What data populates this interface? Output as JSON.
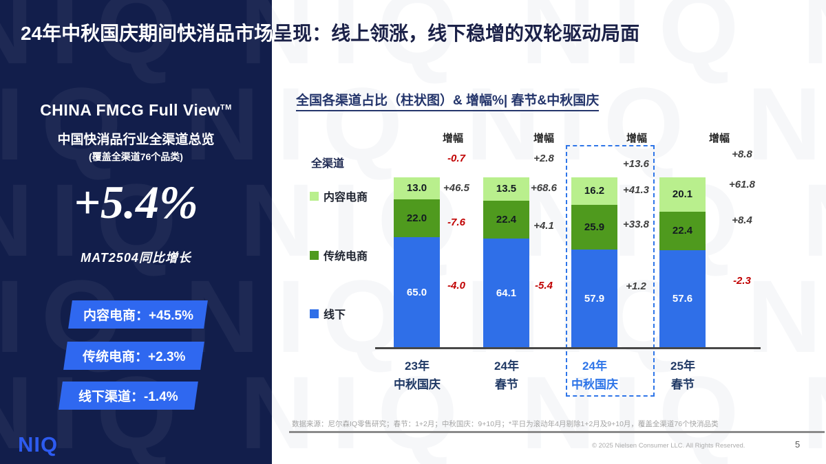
{
  "header": {
    "title": "24年中秋国庆期间快消品市场呈现：线上领涨，线下稳增的双轮驱动局面"
  },
  "sidebar": {
    "product_title": "CHINA FMCG Full View",
    "trademark": "TM",
    "subtitle": "中国快消品行业全渠道总览",
    "coverage_note": "(覆盖全渠道76个品类)",
    "headline_value": "+5.4%",
    "headline_caption": "MAT2504同比增长",
    "badge_color": "#2F68F0",
    "background_color": "#121E4B",
    "badges": [
      {
        "label": "内容电商：",
        "value": "+45.5%"
      },
      {
        "label": "传统电商：",
        "value": "+2.3%"
      },
      {
        "label": "线下渠道：",
        "value": "-1.4%"
      }
    ],
    "logo_text": "NIQ"
  },
  "chart": {
    "title": "全国各渠道占比（柱状图）& 增幅%| 春节&中秋国庆"
  },
  "chart_data": {
    "type": "bar",
    "stacked": true,
    "title": "全国各渠道占比（柱状图）& 增幅%| 春节&中秋国庆",
    "unit": "percent_share",
    "ylim": [
      0,
      100
    ],
    "grid": false,
    "legend_position": "left",
    "growth_label": "增幅",
    "categories": [
      [
        "23年",
        "中秋国庆"
      ],
      [
        "24年",
        "春节"
      ],
      [
        "24年",
        "中秋国庆"
      ],
      [
        "25年",
        "春节"
      ]
    ],
    "highlight_index": 2,
    "series": [
      {
        "name": "内容电商",
        "color": "#B9EF8D",
        "values": [
          13.0,
          13.5,
          16.2,
          20.1
        ],
        "growth": [
          "+46.5",
          "+68.6",
          "+41.3",
          "+61.8"
        ]
      },
      {
        "name": "传统电商",
        "color": "#4F9A1E",
        "values": [
          22.0,
          22.4,
          25.9,
          22.4
        ],
        "growth": [
          "-7.6",
          "+4.1",
          "+33.8",
          "+8.4"
        ]
      },
      {
        "name": "线下",
        "color": "#2F6FE8",
        "values": [
          65.0,
          64.1,
          57.9,
          57.6
        ],
        "growth": [
          "-4.0",
          "-5.4",
          "+1.2",
          "-2.3"
        ]
      }
    ],
    "total_growth": {
      "name": "全渠道",
      "values": [
        "-0.7",
        "+2.8",
        "+13.6",
        "+8.8"
      ]
    },
    "negative_color": "#C00000",
    "highlight_color": "#2E75E8"
  },
  "footer": {
    "source_note": "数据来源：尼尔森IQ零售研究；春节：1+2月；中秋国庆：9+10月；*平日为滚动年4月剔除1+2月及9+10月，覆盖全渠道76个快消品类",
    "copyright": "© 2025 Nielsen Consumer LLC. All Rights Reserved.",
    "page_number": "5"
  },
  "decor": {
    "watermark_text": "NIQ"
  }
}
